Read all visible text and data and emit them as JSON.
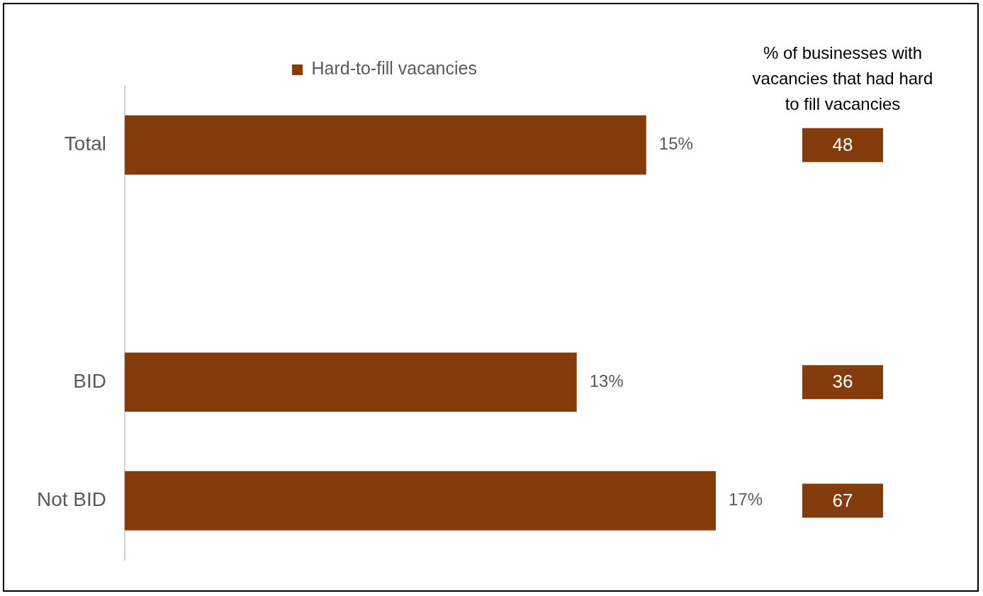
{
  "chart_data": {
    "type": "bar",
    "orientation": "horizontal",
    "categories": [
      "Total",
      null,
      "BID",
      "Not BID"
    ],
    "series": [
      {
        "name": "Hard-to-fill vacancies",
        "color": "#843c0c",
        "values": [
          15,
          null,
          13,
          17
        ],
        "value_labels": [
          "15%",
          null,
          "13%",
          "17%"
        ]
      }
    ],
    "legend": "top",
    "tick_labels": "y",
    "annotations": [
      "% of businesses with vacancies that had hard to fill vacancies",
      "48",
      "36",
      "67"
    ]
  }
}
